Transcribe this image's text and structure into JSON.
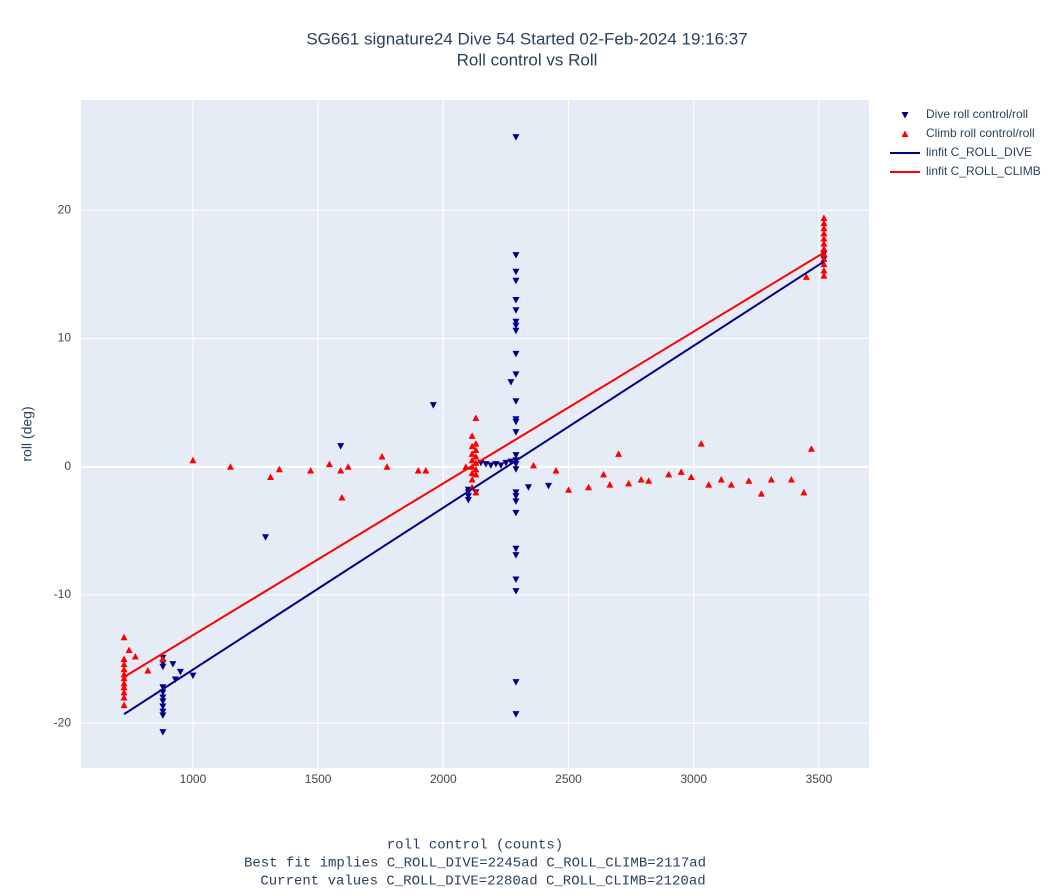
{
  "chart_data": {
    "type": "scatter",
    "title": "SG661 signature24 Dive 54 Started 02-Feb-2024 19:16:37",
    "subtitle": "Roll control vs Roll",
    "xlabel": "roll control (counts)",
    "notes": [
      "Best fit implies C_ROLL_DIVE=2245ad C_ROLL_CLIMB=2117ad",
      "Current values C_ROLL_DIVE=2280ad C_ROLL_CLIMB=2120ad"
    ],
    "ylabel": "roll (deg)",
    "xlim": [
      553,
      3700
    ],
    "ylim": [
      -23.5,
      28.6
    ],
    "xticks": [
      1000,
      1500,
      2000,
      2500,
      3000,
      3500
    ],
    "yticks": [
      -20,
      -10,
      0,
      10,
      20
    ],
    "grid": true,
    "legend": "right",
    "series": [
      {
        "name": "Dive roll control/roll",
        "color": "#00008b",
        "mode": "markers",
        "symbol": "triangle-down",
        "x": [
          880,
          880,
          880,
          880,
          880,
          880,
          880,
          880,
          880,
          880,
          880,
          920,
          930,
          950,
          1000,
          1290,
          1590,
          1960,
          2100,
          2100,
          2100,
          2100,
          2130,
          2150,
          2170,
          2190,
          2210,
          2230,
          2250,
          2270,
          2290,
          2290,
          2290,
          2290,
          2290,
          2290,
          2290,
          2290,
          2290,
          2290,
          2290,
          2290,
          2290,
          2290,
          2290,
          2290,
          2290,
          2290,
          2290,
          2290,
          2290,
          2290,
          2290,
          2290,
          2290,
          2290,
          2290,
          2290,
          2290,
          2270,
          2340,
          2420,
          3520,
          3520
        ],
        "values": [
          -14.9,
          -15.3,
          -15.6,
          -17.2,
          -17.6,
          -18,
          -18.3,
          -18.7,
          -19.1,
          -19.4,
          -20.7,
          -15.4,
          -16.6,
          -16.0,
          -16.3,
          -5.5,
          1.6,
          4.8,
          -1.8,
          -2.0,
          -2.3,
          -2.6,
          -2.0,
          0.3,
          0.2,
          0.1,
          0.2,
          0.1,
          0.3,
          0.4,
          25.7,
          16.5,
          15.2,
          14.5,
          13.0,
          12.2,
          11.3,
          11.0,
          10.6,
          8.8,
          7.2,
          5.1,
          3.7,
          3.5,
          2.7,
          0.9,
          0.5,
          0.2,
          -0.2,
          -2.0,
          -2.3,
          -2.7,
          -3.6,
          -6.4,
          -6.9,
          -8.8,
          -9.7,
          -16.8,
          -19.3,
          6.6,
          -1.6,
          -1.5,
          16.2,
          16.6
        ]
      },
      {
        "name": "Climb roll control/roll",
        "color": "#ff0000",
        "mode": "markers",
        "symbol": "triangle-up",
        "x": [
          725,
          725,
          725,
          725,
          725,
          725,
          725,
          725,
          725,
          725,
          725,
          745,
          770,
          820,
          880,
          1000,
          1150,
          1310,
          1345,
          1470,
          1545,
          1590,
          1595,
          1620,
          1755,
          1775,
          1900,
          1930,
          2090,
          2115,
          2115,
          2115,
          2115,
          2115,
          2115,
          2115,
          2115,
          2130,
          2130,
          2130,
          2130,
          2130,
          2130,
          2130,
          2130,
          2360,
          2450,
          2500,
          2580,
          2640,
          2665,
          2700,
          2740,
          2790,
          2820,
          2900,
          2950,
          2990,
          3030,
          3060,
          3110,
          3150,
          3220,
          3270,
          3310,
          3390,
          3440,
          3470,
          3450,
          3520,
          3520,
          3520,
          3520,
          3520,
          3520,
          3520,
          3520,
          3520,
          3520,
          3520,
          3520
        ],
        "values": [
          -13.3,
          -15.0,
          -15.4,
          -15.8,
          -16.2,
          -16.5,
          -16.9,
          -17.2,
          -17.6,
          -18.0,
          -18.6,
          -14.3,
          -14.8,
          -15.9,
          -15.0,
          0.5,
          0.0,
          -0.8,
          -0.2,
          -0.3,
          0.2,
          -0.3,
          -2.4,
          0.0,
          0.8,
          0.0,
          -0.3,
          -0.3,
          0.0,
          2.4,
          1.6,
          1.0,
          0.5,
          0.0,
          -0.5,
          -1.0,
          -1.6,
          3.8,
          1.8,
          1.3,
          0.8,
          0.3,
          -0.2,
          -0.6,
          -2.0,
          0.1,
          -0.3,
          -1.8,
          -1.6,
          -0.6,
          -1.4,
          1.0,
          -1.3,
          -1.0,
          -1.1,
          -0.6,
          -0.4,
          -0.8,
          1.8,
          -1.4,
          -1.0,
          -1.4,
          -1.1,
          -2.1,
          -1.0,
          -1.0,
          -2.0,
          1.4,
          14.8,
          19.4,
          19.0,
          18.6,
          18.2,
          17.8,
          17.4,
          17.0,
          16.6,
          16.2,
          15.8,
          15.3,
          14.9
        ]
      },
      {
        "name": "linfit C_ROLL_DIVE",
        "color": "#00008b",
        "mode": "lines",
        "x": [
          725,
          3520
        ],
        "values": [
          -19.3,
          16.0
        ]
      },
      {
        "name": "linfit C_ROLL_CLIMB",
        "color": "#ff0000",
        "mode": "lines",
        "x": [
          725,
          3520
        ],
        "values": [
          -16.4,
          16.7
        ]
      }
    ]
  }
}
